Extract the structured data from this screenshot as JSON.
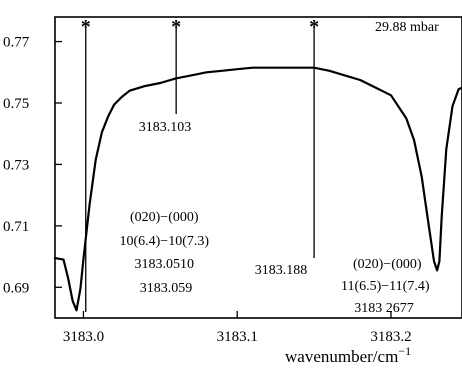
{
  "chart_data": {
    "type": "line",
    "title": "",
    "pressure_label": "29.88 mbar",
    "xlabel": "wavenumber/cm",
    "xlabel_superscript": "−1",
    "ylabel": "",
    "xlim": [
      2.9815,
      3.2462
    ],
    "ylim": [
      0.68,
      0.778
    ],
    "x_ticks": [
      {
        "value": 3.0,
        "label": "3183.0"
      },
      {
        "value": 3.1,
        "label": "3183.1"
      },
      {
        "value": 3.2,
        "label": "3183.2"
      }
    ],
    "y_ticks": [
      {
        "value": 0.69,
        "label": "0.69"
      },
      {
        "value": 0.71,
        "label": "0.71"
      },
      {
        "value": 0.73,
        "label": "0.73"
      },
      {
        "value": 0.75,
        "label": "0.75"
      },
      {
        "value": 0.77,
        "label": "0.77"
      }
    ],
    "series": [
      {
        "x": [
          2.9815,
          2.987,
          2.99,
          2.993,
          2.9955,
          2.998,
          3.0,
          3.004,
          3.008,
          3.012,
          3.016,
          3.02,
          3.025,
          3.03,
          3.04,
          3.05,
          3.06,
          3.07,
          3.08,
          3.09,
          3.1,
          3.11,
          3.12,
          3.13,
          3.14,
          3.15,
          3.16,
          3.17,
          3.18,
          3.19,
          3.2,
          3.21,
          3.215,
          3.22,
          3.224,
          3.228,
          3.23,
          3.2315,
          3.233,
          3.236,
          3.24,
          3.244,
          3.2462
        ],
        "y": [
          0.6995,
          0.699,
          0.693,
          0.6855,
          0.6825,
          0.6895,
          0.699,
          0.717,
          0.7315,
          0.7405,
          0.7455,
          0.7495,
          0.752,
          0.754,
          0.7555,
          0.7565,
          0.758,
          0.759,
          0.76,
          0.7605,
          0.761,
          0.7615,
          0.7615,
          0.7615,
          0.7615,
          0.7615,
          0.7605,
          0.759,
          0.7575,
          0.755,
          0.7525,
          0.745,
          0.738,
          0.726,
          0.712,
          0.6985,
          0.6955,
          0.6985,
          0.713,
          0.735,
          0.749,
          0.7545,
          0.755
        ]
      }
    ],
    "annotations": [
      {
        "x": 3.0015,
        "marker": "*",
        "label_lines": [
          "(020)−(000)",
          "10(6.4)−10(7.3)",
          "3183.0510",
          "3183.059"
        ]
      },
      {
        "x": 3.0603,
        "marker": "*",
        "label_lines": [
          "3183.103"
        ]
      },
      {
        "x": 3.15,
        "marker": "*",
        "label_lines": [
          "3183.188"
        ]
      },
      {
        "x": null,
        "marker": "",
        "label_lines": [
          "(020)−(000)",
          "11(6.5)−11(7.4)",
          "3183 2677"
        ]
      }
    ]
  }
}
